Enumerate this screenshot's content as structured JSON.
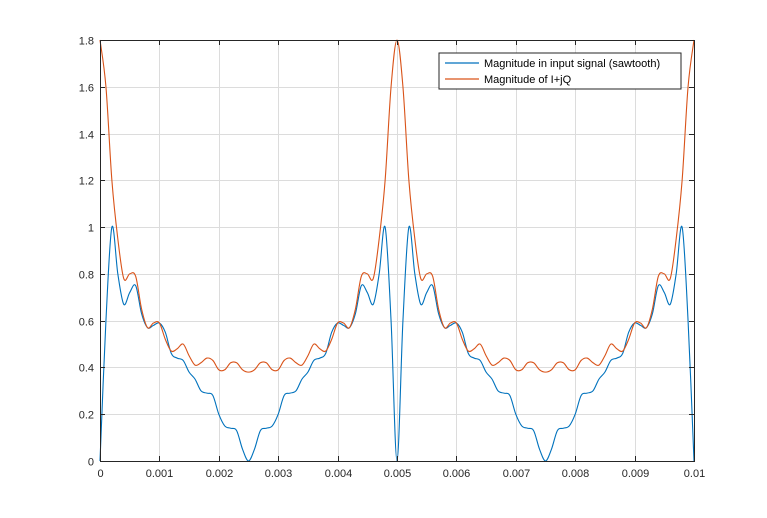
{
  "chart_data": {
    "type": "line",
    "title": "",
    "xlabel": "",
    "ylabel": "",
    "xlim": [
      0,
      0.01
    ],
    "ylim": [
      0,
      1.8
    ],
    "grid": true,
    "legend_position": "top-right",
    "x_ticks": [
      0,
      0.001,
      0.002,
      0.003,
      0.004,
      0.005,
      0.006,
      0.007,
      0.008,
      0.009,
      0.01
    ],
    "x_tick_labels": [
      "0",
      "0.001",
      "0.002",
      "0.003",
      "0.004",
      "0.005",
      "0.006",
      "0.007",
      "0.008",
      "0.009",
      "0.01"
    ],
    "y_ticks": [
      0,
      0.2,
      0.4,
      0.6,
      0.8,
      1.0,
      1.2,
      1.4,
      1.6,
      1.8
    ],
    "y_tick_labels": [
      "0",
      "0.2",
      "0.4",
      "0.6",
      "0.8",
      "1",
      "1.2",
      "1.4",
      "1.6",
      "1.8"
    ],
    "series": [
      {
        "name": "Magnitude in input signal (sawtooth)",
        "color": "#0072BD",
        "x": [
          0,
          0.0001,
          0.0002,
          0.0003,
          0.0004,
          0.0005,
          0.0006,
          0.0007,
          0.0008,
          0.0009,
          0.001,
          0.0011,
          0.0012,
          0.0013,
          0.0014,
          0.0015,
          0.0016,
          0.0017,
          0.0018,
          0.0019,
          0.002,
          0.0021,
          0.0022,
          0.0023,
          0.0024,
          0.0025,
          0.0026,
          0.0027,
          0.0028,
          0.0029,
          0.003,
          0.0031,
          0.0032,
          0.0033,
          0.0034,
          0.0035,
          0.0036,
          0.0037,
          0.0038,
          0.0039,
          0.004,
          0.0041,
          0.0042,
          0.0043,
          0.0044,
          0.0045,
          0.0046,
          0.0047,
          0.0048,
          0.0049,
          0.005,
          0.0051,
          0.0052,
          0.0053,
          0.0054,
          0.0055,
          0.0056,
          0.0057,
          0.0058,
          0.0059,
          0.006,
          0.0061,
          0.0062,
          0.0063,
          0.0064,
          0.0065,
          0.0066,
          0.0067,
          0.0068,
          0.0069,
          0.007,
          0.0071,
          0.0072,
          0.0073,
          0.0074,
          0.0075,
          0.0076,
          0.0077,
          0.0078,
          0.0079,
          0.008,
          0.0081,
          0.0082,
          0.0083,
          0.0084,
          0.0085,
          0.0086,
          0.0087,
          0.0088,
          0.0089,
          0.009,
          0.0091,
          0.0092,
          0.0093,
          0.0094,
          0.0095,
          0.0096,
          0.0097,
          0.0098,
          0.0099,
          0.01
        ],
        "y": [
          0,
          0.6,
          1.0,
          0.8,
          0.67,
          0.72,
          0.75,
          0.63,
          0.57,
          0.58,
          0.59,
          0.55,
          0.46,
          0.44,
          0.43,
          0.38,
          0.35,
          0.3,
          0.29,
          0.28,
          0.2,
          0.15,
          0.14,
          0.13,
          0.05,
          0.0,
          0.05,
          0.13,
          0.14,
          0.15,
          0.2,
          0.28,
          0.29,
          0.3,
          0.35,
          0.38,
          0.43,
          0.44,
          0.46,
          0.55,
          0.59,
          0.58,
          0.57,
          0.63,
          0.75,
          0.72,
          0.67,
          0.8,
          1.0,
          0.6,
          0,
          0.6,
          1.0,
          0.8,
          0.67,
          0.72,
          0.75,
          0.63,
          0.57,
          0.58,
          0.59,
          0.55,
          0.46,
          0.44,
          0.43,
          0.38,
          0.35,
          0.3,
          0.29,
          0.28,
          0.2,
          0.15,
          0.14,
          0.13,
          0.05,
          0.0,
          0.05,
          0.13,
          0.14,
          0.15,
          0.2,
          0.28,
          0.29,
          0.3,
          0.35,
          0.38,
          0.43,
          0.44,
          0.46,
          0.55,
          0.59,
          0.58,
          0.57,
          0.63,
          0.75,
          0.72,
          0.67,
          0.8,
          1.0,
          0.6,
          0
        ]
      },
      {
        "name": "Magnitude of I+jQ",
        "color": "#D95319",
        "x": [
          0,
          0.0001,
          0.0002,
          0.0003,
          0.0004,
          0.0005,
          0.0006,
          0.0007,
          0.0008,
          0.0009,
          0.001,
          0.0011,
          0.0012,
          0.0013,
          0.0014,
          0.0015,
          0.0016,
          0.0017,
          0.0018,
          0.0019,
          0.002,
          0.0021,
          0.0022,
          0.0023,
          0.0024,
          0.0025,
          0.0026,
          0.0027,
          0.0028,
          0.0029,
          0.003,
          0.0031,
          0.0032,
          0.0033,
          0.0034,
          0.0035,
          0.0036,
          0.0037,
          0.0038,
          0.0039,
          0.004,
          0.0041,
          0.0042,
          0.0043,
          0.0044,
          0.0045,
          0.0046,
          0.0047,
          0.0048,
          0.0049,
          0.005,
          0.0051,
          0.0052,
          0.0053,
          0.0054,
          0.0055,
          0.0056,
          0.0057,
          0.0058,
          0.0059,
          0.006,
          0.0061,
          0.0062,
          0.0063,
          0.0064,
          0.0065,
          0.0066,
          0.0067,
          0.0068,
          0.0069,
          0.007,
          0.0071,
          0.0072,
          0.0073,
          0.0074,
          0.0075,
          0.0076,
          0.0077,
          0.0078,
          0.0079,
          0.008,
          0.0081,
          0.0082,
          0.0083,
          0.0084,
          0.0085,
          0.0086,
          0.0087,
          0.0088,
          0.0089,
          0.009,
          0.0091,
          0.0092,
          0.0093,
          0.0094,
          0.0095,
          0.0096,
          0.0097,
          0.0098,
          0.0099,
          0.01
        ],
        "y": [
          1.8,
          1.6,
          1.2,
          0.95,
          0.78,
          0.8,
          0.79,
          0.65,
          0.57,
          0.59,
          0.59,
          0.52,
          0.47,
          0.48,
          0.5,
          0.45,
          0.41,
          0.42,
          0.44,
          0.43,
          0.39,
          0.39,
          0.42,
          0.42,
          0.39,
          0.38,
          0.39,
          0.42,
          0.42,
          0.39,
          0.39,
          0.43,
          0.44,
          0.42,
          0.41,
          0.45,
          0.5,
          0.48,
          0.47,
          0.52,
          0.59,
          0.59,
          0.57,
          0.65,
          0.79,
          0.8,
          0.78,
          0.95,
          1.2,
          1.6,
          1.8,
          1.6,
          1.2,
          0.95,
          0.78,
          0.8,
          0.79,
          0.65,
          0.57,
          0.59,
          0.59,
          0.52,
          0.47,
          0.48,
          0.5,
          0.45,
          0.41,
          0.42,
          0.44,
          0.43,
          0.39,
          0.39,
          0.42,
          0.42,
          0.39,
          0.38,
          0.39,
          0.42,
          0.42,
          0.39,
          0.39,
          0.43,
          0.44,
          0.42,
          0.41,
          0.45,
          0.5,
          0.48,
          0.47,
          0.52,
          0.59,
          0.59,
          0.57,
          0.65,
          0.79,
          0.8,
          0.78,
          0.95,
          1.2,
          1.6,
          1.8
        ]
      }
    ]
  }
}
